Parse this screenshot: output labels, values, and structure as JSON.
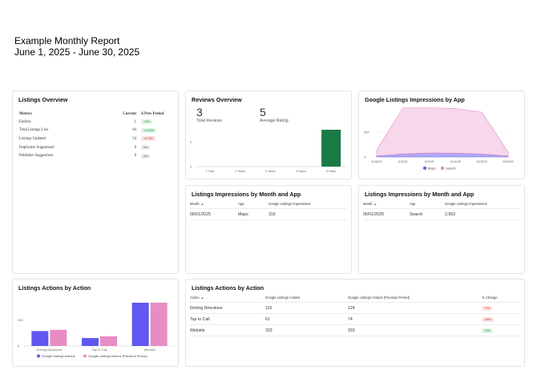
{
  "report": {
    "title": "Example Monthly Report",
    "date_range": "June 1, 2025 - June 30, 2025"
  },
  "overview": {
    "title": "Listings Overview",
    "headers": [
      "Metrics",
      "Current",
      "Δ Prev Period"
    ],
    "rows": [
      {
        "metric": "Entities",
        "current": "1",
        "change": "+0%",
        "trend": "up"
      },
      {
        "metric": "Total Listings Live",
        "current": "64",
        "change": "+4.92%",
        "trend": "up"
      },
      {
        "metric": "Listings Updated",
        "current": "54",
        "change": "-47.6%",
        "trend": "down"
      },
      {
        "metric": "Duplicates Suppressed",
        "current": "0",
        "change": "n/a",
        "trend": "flat"
      },
      {
        "metric": "Publisher Suggestions",
        "current": "0",
        "change": "n/a",
        "trend": "flat"
      }
    ]
  },
  "reviews": {
    "title": "Reviews Overview",
    "total_reviews": "3",
    "total_label": "Total Reviews",
    "average_rating": "5",
    "average_label": "Average Rating",
    "colors": {
      "bar": "#1a7a45"
    },
    "chart_data": {
      "type": "bar",
      "categories": [
        "1 Star",
        "2 Stars",
        "3 Stars",
        "4 Stars",
        "5 Stars"
      ],
      "values": [
        0,
        0,
        0,
        0,
        3
      ],
      "yticks": [
        "0",
        "2"
      ],
      "ylim": [
        0,
        3
      ]
    }
  },
  "impressions_chart": {
    "title": "Google Listings Impressions by App",
    "colors": {
      "maps": "#6c63f0",
      "search": "#e98cc4"
    },
    "chart_data": {
      "type": "area",
      "x": [
        "5/28/25",
        "6/2/25",
        "6/9/25",
        "6/14/25",
        "6/23/25",
        "6/30/25"
      ],
      "series": [
        {
          "name": "Maps",
          "values": [
            20,
            60,
            80,
            75,
            60,
            20
          ]
        },
        {
          "name": "Search",
          "values": [
            120,
            930,
            910,
            900,
            840,
            80
          ]
        }
      ],
      "yticks": [
        "0",
        "500"
      ],
      "ylim": [
        0,
        1000
      ]
    }
  },
  "impr_table_maps": {
    "title": "Listings Impressions by Month and App",
    "headers": [
      "Month",
      "App",
      "Google Listings Impressions"
    ],
    "rows": [
      {
        "month": "06/01/2025",
        "app": "Maps",
        "impressions": "319"
      }
    ]
  },
  "impr_table_search": {
    "title": "Listings Impressions by Month and App",
    "headers": [
      "Month",
      "App",
      "Google Listings Impressions"
    ],
    "rows": [
      {
        "month": "06/01/2025",
        "app": "Search",
        "impressions": "2,953"
      }
    ]
  },
  "actions_chart": {
    "title": "Listings Actions by Action",
    "colors": {
      "current": "#6058f0",
      "previous": "#e98cc4"
    },
    "chart_data": {
      "type": "bar",
      "categories": [
        "Driving Directions",
        "Tap to Call",
        "Website"
      ],
      "series": [
        {
          "name": "Google Listings Actions",
          "values": [
            115,
            61,
            333
          ]
        },
        {
          "name": "Google Listings Actions (Previous Period)",
          "values": [
            124,
            74,
            333
          ]
        }
      ],
      "yticks": [
        "0",
        "200"
      ],
      "ylim": [
        0,
        370
      ]
    }
  },
  "actions_table": {
    "title": "Listings Actions by Action",
    "headers": [
      "Action",
      "Google Listings Actions",
      "Google Listings Actions (Previous Period)",
      "% Change"
    ],
    "rows": [
      {
        "action": "Driving Directions",
        "current": "115",
        "previous": "124",
        "change": "-7%",
        "trend": "down"
      },
      {
        "action": "Tap to Call",
        "current": "61",
        "previous": "74",
        "change": "-18%",
        "trend": "down"
      },
      {
        "action": "Website",
        "current": "333",
        "previous": "333",
        "change": "+0%",
        "trend": "up"
      }
    ]
  }
}
